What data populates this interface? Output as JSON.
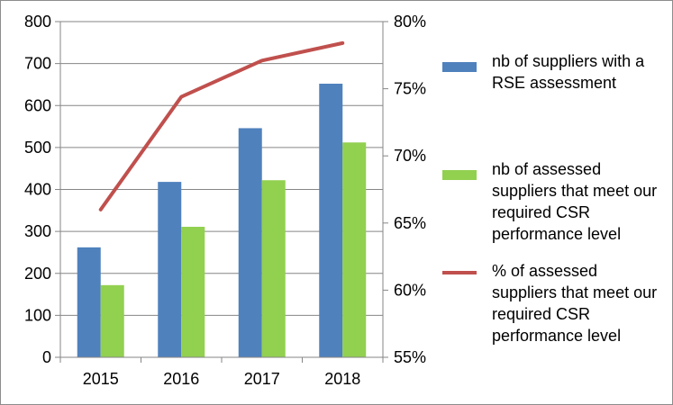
{
  "chart_data": {
    "type": "bar",
    "categories": [
      "2015",
      "2016",
      "2017",
      "2018"
    ],
    "series": [
      {
        "name": "nb of suppliers with a RSE assessment",
        "type": "bar",
        "axis": "left",
        "color": "#4f81bd",
        "values": [
          262,
          418,
          546,
          652
        ]
      },
      {
        "name": "nb of assessed suppliers that meet our required CSR performance level",
        "type": "bar",
        "axis": "left",
        "color": "#92d050",
        "values": [
          172,
          311,
          422,
          512
        ]
      },
      {
        "name": "% of assessed suppliers that meet our required CSR performance level",
        "type": "line",
        "axis": "right",
        "color": "#c0504d",
        "values": [
          0.66,
          0.744,
          0.771,
          0.784
        ]
      }
    ],
    "ylim": [
      0,
      800
    ],
    "y_ticks": [
      "0",
      "100",
      "200",
      "300",
      "400",
      "500",
      "600",
      "700",
      "800"
    ],
    "y2lim": [
      0.55,
      0.8
    ],
    "y2_ticks": [
      "55%",
      "60%",
      "65%",
      "70%",
      "75%",
      "80%"
    ],
    "grid": true,
    "legend_position": "right"
  }
}
